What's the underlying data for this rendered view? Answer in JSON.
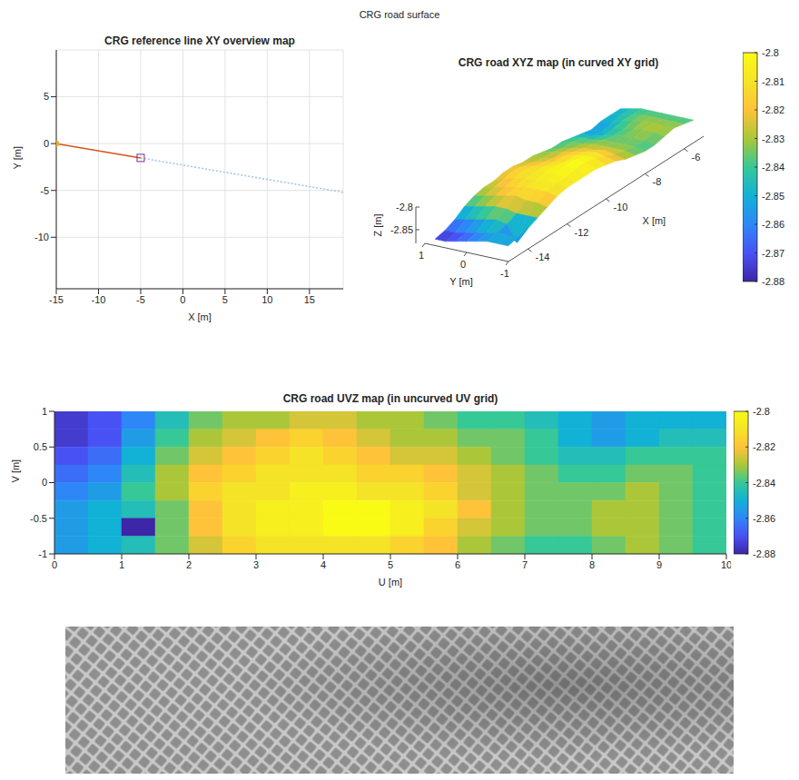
{
  "title": "CRG road surface",
  "chart_data": [
    {
      "type": "line",
      "title": "CRG reference line XY overview map",
      "xlabel": "X [m]",
      "ylabel": "Y [m]",
      "xlim": [
        -15,
        19
      ],
      "xticks": [
        -15,
        -10,
        -5,
        0,
        5,
        10,
        15
      ],
      "ylim": [
        -15.5,
        10
      ],
      "yticks": [
        -10,
        -5,
        0,
        5
      ],
      "grid": true,
      "series": [
        {
          "color": "#d95319",
          "line_style": "solid",
          "x": [
            -15,
            -5
          ],
          "values": [
            0,
            -1.53
          ]
        },
        {
          "color": "#9dc3e6",
          "line_style": "dotted",
          "x": [
            -5,
            19
          ],
          "values": [
            -1.53,
            -5.2
          ]
        },
        {
          "color": "#7e2f8e",
          "line_style": "none",
          "marker": "square",
          "x": [
            -5
          ],
          "values": [
            -1.53
          ]
        },
        {
          "color": "#edb120",
          "line_style": "none",
          "marker": "circle",
          "x": [
            -15
          ],
          "values": [
            0
          ]
        }
      ]
    },
    {
      "type": "surface",
      "title": "CRG road XYZ map (in curved XY grid)",
      "xlabel": "X [m]",
      "ylabel": "Y [m]",
      "zlabel": "Z [m]",
      "xlim": [
        -15,
        -5
      ],
      "xticks": [
        -14,
        -12,
        -10,
        -8,
        -6
      ],
      "ylim": [
        -1,
        1
      ],
      "yticks": [
        -1,
        0,
        1
      ],
      "zlim": [
        -2.88,
        -2.8
      ],
      "zticks": [
        -2.85,
        -2.8
      ],
      "x": [
        -14.75,
        -14.25,
        -13.75,
        -13.25,
        -12.75,
        -12.25,
        -11.75,
        -11.25,
        -10.75,
        -10.25,
        -9.75,
        -9.25,
        -8.75,
        -8.25,
        -7.75,
        -7.25,
        -6.75,
        -6.25,
        -5.75,
        -5.25
      ],
      "y": [
        0.875,
        0.625,
        0.375,
        0.125,
        -0.125,
        -0.375,
        -0.625,
        -0.875
      ],
      "z": [
        [
          -2.875,
          -2.87,
          -2.86,
          -2.845,
          -2.835,
          -2.83,
          -2.83,
          -2.825,
          -2.825,
          -2.83,
          -2.83,
          -2.835,
          -2.84,
          -2.84,
          -2.845,
          -2.85,
          -2.855,
          -2.85,
          -2.85,
          -2.85
        ],
        [
          -2.875,
          -2.87,
          -2.855,
          -2.84,
          -2.83,
          -2.825,
          -2.82,
          -2.815,
          -2.82,
          -2.825,
          -2.83,
          -2.83,
          -2.835,
          -2.835,
          -2.84,
          -2.85,
          -2.855,
          -2.85,
          -2.845,
          -2.845
        ],
        [
          -2.87,
          -2.865,
          -2.85,
          -2.835,
          -2.825,
          -2.82,
          -2.815,
          -2.81,
          -2.815,
          -2.82,
          -2.825,
          -2.825,
          -2.83,
          -2.835,
          -2.84,
          -2.845,
          -2.845,
          -2.84,
          -2.84,
          -2.84
        ],
        [
          -2.865,
          -2.86,
          -2.845,
          -2.83,
          -2.82,
          -2.815,
          -2.81,
          -2.81,
          -2.81,
          -2.815,
          -2.815,
          -2.82,
          -2.825,
          -2.83,
          -2.835,
          -2.84,
          -2.84,
          -2.835,
          -2.835,
          -2.84
        ],
        [
          -2.86,
          -2.855,
          -2.84,
          -2.83,
          -2.815,
          -2.81,
          -2.81,
          -2.805,
          -2.805,
          -2.81,
          -2.81,
          -2.815,
          -2.825,
          -2.83,
          -2.835,
          -2.835,
          -2.835,
          -2.83,
          -2.835,
          -2.84
        ],
        [
          -2.855,
          -2.85,
          -2.845,
          -2.835,
          -2.82,
          -2.81,
          -2.805,
          -2.805,
          -2.8,
          -2.8,
          -2.805,
          -2.81,
          -2.82,
          -2.83,
          -2.835,
          -2.835,
          -2.83,
          -2.83,
          -2.835,
          -2.84
        ],
        [
          -2.855,
          -2.85,
          -2.88,
          -2.835,
          -2.82,
          -2.81,
          -2.805,
          -2.805,
          -2.8,
          -2.8,
          -2.805,
          -2.815,
          -2.825,
          -2.83,
          -2.835,
          -2.835,
          -2.83,
          -2.83,
          -2.835,
          -2.84
        ],
        [
          -2.855,
          -2.85,
          -2.845,
          -2.835,
          -2.825,
          -2.815,
          -2.81,
          -2.81,
          -2.81,
          -2.81,
          -2.815,
          -2.82,
          -2.83,
          -2.835,
          -2.84,
          -2.84,
          -2.835,
          -2.83,
          -2.835,
          -2.84
        ]
      ],
      "colorbar": {
        "range": [
          -2.88,
          -2.8
        ],
        "ticks": [
          -2.88,
          -2.87,
          -2.86,
          -2.85,
          -2.84,
          -2.83,
          -2.82,
          -2.81,
          -2.8
        ]
      }
    },
    {
      "type": "heatmap",
      "title": "CRG road UVZ map (in uncurved UV grid)",
      "xlabel": "U [m]",
      "ylabel": "V [m]",
      "xlim": [
        0,
        10
      ],
      "xticks": [
        0,
        1,
        2,
        3,
        4,
        5,
        6,
        7,
        8,
        9,
        10
      ],
      "ylim": [
        -1,
        1
      ],
      "yticks": [
        -1,
        -0.5,
        0,
        0.5,
        1
      ],
      "x": [
        0.25,
        0.75,
        1.25,
        1.75,
        2.25,
        2.75,
        3.25,
        3.75,
        4.25,
        4.75,
        5.25,
        5.75,
        6.25,
        6.75,
        7.25,
        7.75,
        8.25,
        8.75,
        9.25,
        9.75
      ],
      "y": [
        0.875,
        0.625,
        0.375,
        0.125,
        -0.125,
        -0.375,
        -0.625,
        -0.875
      ],
      "z": [
        [
          -2.875,
          -2.87,
          -2.86,
          -2.845,
          -2.835,
          -2.83,
          -2.83,
          -2.825,
          -2.825,
          -2.83,
          -2.83,
          -2.835,
          -2.84,
          -2.84,
          -2.845,
          -2.85,
          -2.855,
          -2.85,
          -2.85,
          -2.85
        ],
        [
          -2.875,
          -2.87,
          -2.855,
          -2.84,
          -2.83,
          -2.825,
          -2.82,
          -2.815,
          -2.82,
          -2.825,
          -2.83,
          -2.83,
          -2.835,
          -2.835,
          -2.84,
          -2.85,
          -2.855,
          -2.85,
          -2.845,
          -2.845
        ],
        [
          -2.87,
          -2.865,
          -2.85,
          -2.835,
          -2.825,
          -2.82,
          -2.815,
          -2.81,
          -2.815,
          -2.82,
          -2.825,
          -2.825,
          -2.83,
          -2.835,
          -2.84,
          -2.845,
          -2.845,
          -2.84,
          -2.84,
          -2.84
        ],
        [
          -2.865,
          -2.86,
          -2.845,
          -2.83,
          -2.82,
          -2.815,
          -2.81,
          -2.81,
          -2.81,
          -2.815,
          -2.815,
          -2.82,
          -2.825,
          -2.83,
          -2.835,
          -2.84,
          -2.84,
          -2.835,
          -2.835,
          -2.84
        ],
        [
          -2.86,
          -2.855,
          -2.84,
          -2.83,
          -2.815,
          -2.81,
          -2.81,
          -2.805,
          -2.805,
          -2.81,
          -2.81,
          -2.815,
          -2.825,
          -2.83,
          -2.835,
          -2.835,
          -2.835,
          -2.83,
          -2.835,
          -2.84
        ],
        [
          -2.855,
          -2.85,
          -2.845,
          -2.835,
          -2.82,
          -2.81,
          -2.805,
          -2.805,
          -2.8,
          -2.8,
          -2.805,
          -2.81,
          -2.82,
          -2.83,
          -2.835,
          -2.835,
          -2.83,
          -2.83,
          -2.835,
          -2.84
        ],
        [
          -2.855,
          -2.85,
          -2.88,
          -2.835,
          -2.82,
          -2.81,
          -2.805,
          -2.805,
          -2.8,
          -2.8,
          -2.805,
          -2.815,
          -2.825,
          -2.83,
          -2.835,
          -2.835,
          -2.83,
          -2.83,
          -2.835,
          -2.84
        ],
        [
          -2.855,
          -2.85,
          -2.845,
          -2.835,
          -2.825,
          -2.815,
          -2.81,
          -2.81,
          -2.81,
          -2.81,
          -2.815,
          -2.82,
          -2.83,
          -2.835,
          -2.84,
          -2.84,
          -2.835,
          -2.83,
          -2.835,
          -2.84
        ]
      ],
      "colorbar": {
        "range": [
          -2.88,
          -2.8
        ],
        "ticks": [
          -2.88,
          -2.86,
          -2.84,
          -2.82,
          -2.8
        ]
      }
    }
  ]
}
